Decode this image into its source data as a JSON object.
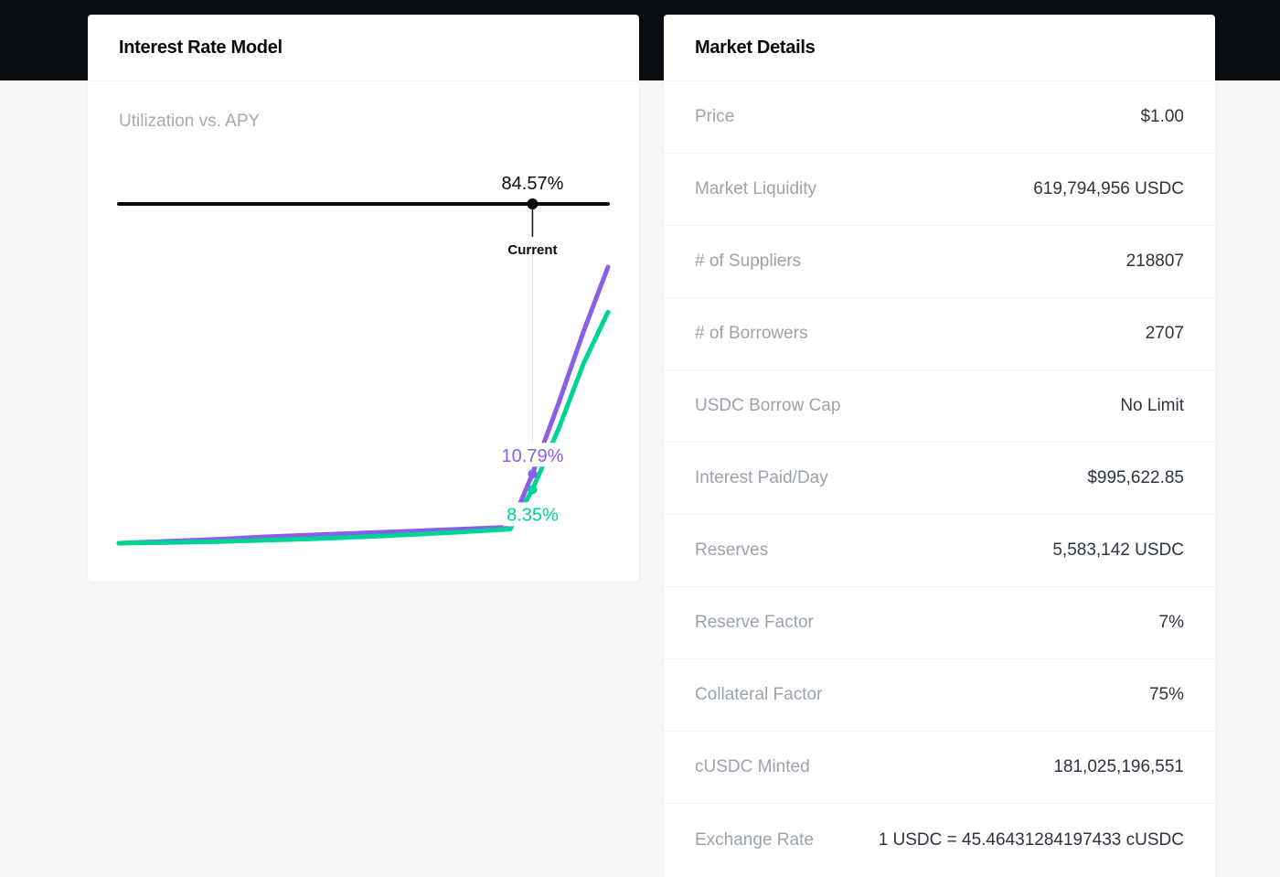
{
  "interest_rate_model": {
    "title": "Interest Rate Model",
    "subtitle": "Utilization vs. APY",
    "utilization_label": "84.57%",
    "current_label": "Current",
    "borrow_apy_label": "10.79%",
    "supply_apy_label": "8.35%",
    "colors": {
      "borrow": "#8a5ee6",
      "supply": "#00d395",
      "axis": "#070a0e"
    }
  },
  "chart_data": {
    "type": "line",
    "series": [
      {
        "values_x": [
          0,
          10,
          20,
          30,
          40,
          50,
          60,
          70,
          80,
          84.57,
          90,
          95,
          100
        ],
        "values": [
          0.0,
          0.3,
          0.6,
          1.0,
          1.3,
          1.6,
          1.9,
          2.2,
          2.5,
          10.79,
          22.0,
          33.0,
          43.0
        ]
      },
      {
        "values_x": [
          0,
          10,
          20,
          30,
          40,
          50,
          60,
          70,
          80,
          84.57,
          90,
          95,
          100
        ],
        "values": [
          0.0,
          0.1,
          0.25,
          0.45,
          0.7,
          1.0,
          1.35,
          1.75,
          2.2,
          8.35,
          18.0,
          28.0,
          36.0
        ]
      }
    ],
    "current_utilization": 84.57,
    "current_borrow_apy": 10.79,
    "current_supply_apy": 8.35,
    "xlim": [
      0,
      100
    ],
    "ylim": [
      0,
      45
    ]
  },
  "market_details": {
    "title": "Market Details",
    "rows": [
      {
        "label": "Price",
        "value": "$1.00"
      },
      {
        "label": "Market Liquidity",
        "value": "619,794,956 USDC"
      },
      {
        "label": "# of Suppliers",
        "value": "218807"
      },
      {
        "label": "# of Borrowers",
        "value": "2707"
      },
      {
        "label": "USDC Borrow Cap",
        "value": "No Limit"
      },
      {
        "label": "Interest Paid/Day",
        "value": "$995,622.85"
      },
      {
        "label": "Reserves",
        "value": "5,583,142 USDC"
      },
      {
        "label": "Reserve Factor",
        "value": "7%"
      },
      {
        "label": "Collateral Factor",
        "value": "75%"
      },
      {
        "label": "cUSDC Minted",
        "value": "181,025,196,551"
      },
      {
        "label": "Exchange Rate",
        "value": "1 USDC = 45.46431284197433 cUSDC"
      }
    ]
  }
}
